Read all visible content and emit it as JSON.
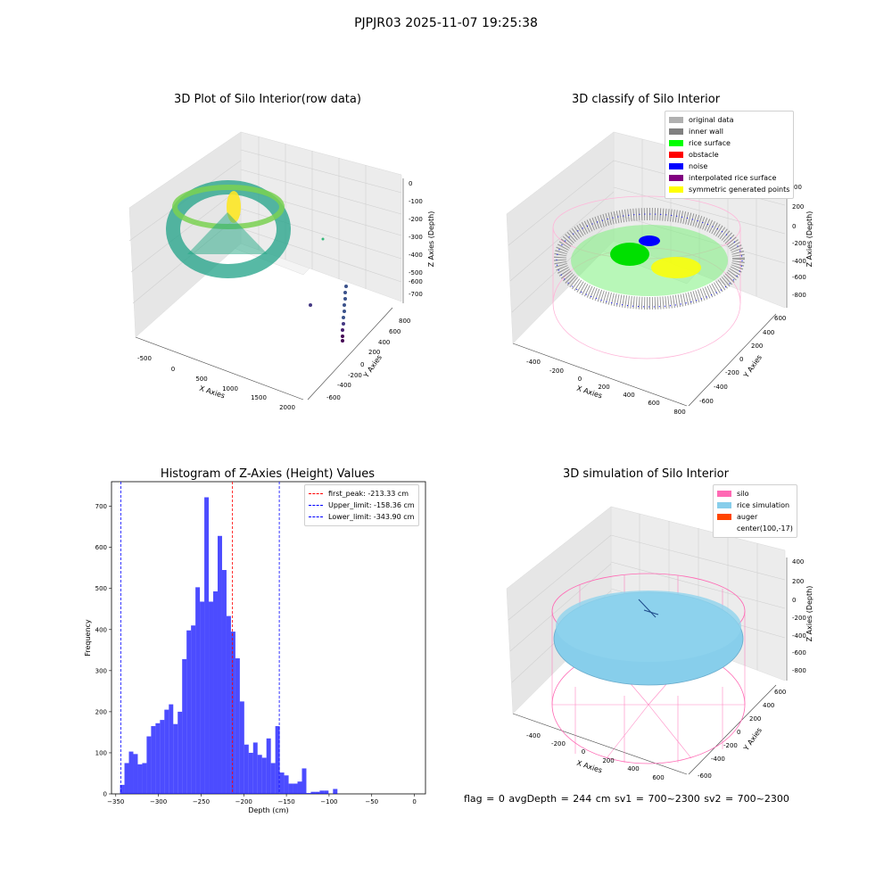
{
  "suptitle": "PJPJR03 2025-11-07 19:25:38",
  "footer": "flag = 0     avgDepth = 244 cm  sv1 = 700~2300  sv2 = 700~2300",
  "chart_data": [
    {
      "type": "scatter",
      "title": "3D Plot of Silo Interior(row data)",
      "xlabel": "X Axies",
      "ylabel": "Y Axies",
      "zlabel": "Z Axies (Depth)",
      "x_ticks": [
        "-500",
        "0",
        "500",
        "1000",
        "1500",
        "2000"
      ],
      "y_ticks": [
        "-600",
        "-400",
        "-200",
        "0",
        "200",
        "400",
        "600",
        "800"
      ],
      "z_ticks": [
        "0",
        "-100",
        "-200",
        "-300",
        "-400",
        "-500",
        "-600",
        "-700"
      ],
      "grid": true
    },
    {
      "type": "scatter",
      "title": "3D classify of Silo Interior",
      "xlabel": "X Axies",
      "ylabel": "Y Axies",
      "zlabel": "Z Axies (Depth)",
      "x_ticks": [
        "-400",
        "-200",
        "0",
        "200",
        "400",
        "600",
        "800"
      ],
      "y_ticks": [
        "-600",
        "-400",
        "-200",
        "0",
        "200",
        "400",
        "600"
      ],
      "z_ticks": [
        "200",
        "0",
        "-200",
        "-400",
        "-600",
        "-800"
      ],
      "z_ticks_partial": "00",
      "legend": [
        {
          "label": "original data",
          "color": "#b0b0b0"
        },
        {
          "label": "inner wall",
          "color": "#808080"
        },
        {
          "label": "rice surface",
          "color": "#00ff00"
        },
        {
          "label": "obstacle",
          "color": "#ff0000"
        },
        {
          "label": "noise",
          "color": "#0000ff"
        },
        {
          "label": "interpolated rice surface",
          "color": "#800080"
        },
        {
          "label": "symmetric generated points",
          "color": "#ffff00"
        }
      ],
      "legend_position": "top-right",
      "grid": true
    },
    {
      "type": "histogram",
      "title": "Histogram of Z-Axies (Height) Values",
      "xlabel": "Depth (cm)",
      "ylabel": "Frequency",
      "xlim": [
        -355,
        13
      ],
      "ylim": [
        0,
        760
      ],
      "x_ticks": [
        -350,
        -300,
        -250,
        -200,
        -150,
        -100,
        -50,
        0
      ],
      "y_ticks": [
        0,
        100,
        200,
        300,
        400,
        500,
        600,
        700
      ],
      "bin_start": -345,
      "bin_width": 5.2,
      "values": [
        22,
        75,
        103,
        97,
        72,
        75,
        140,
        165,
        172,
        180,
        205,
        218,
        170,
        200,
        328,
        398,
        410,
        503,
        468,
        722,
        468,
        493,
        628,
        545,
        433,
        395,
        330,
        225,
        120,
        100,
        125,
        95,
        88,
        135,
        75,
        165,
        52,
        45,
        25,
        25,
        30,
        62,
        2,
        5,
        5,
        8,
        8,
        0,
        12
      ],
      "bar_color": "#0000ff",
      "vlines": [
        {
          "label": "first_peak: -213.33 cm",
          "x": -213.33,
          "color": "#ff0000"
        },
        {
          "label": "Upper_limit: -158.36 cm",
          "x": -158.36,
          "color": "#0000ff"
        },
        {
          "label": "Lower_limit: -343.90 cm",
          "x": -343.9,
          "color": "#0000ff"
        }
      ],
      "legend_position": "top-right"
    },
    {
      "type": "surface",
      "title": "3D simulation of Silo Interior",
      "xlabel": "X Axies",
      "ylabel": "Y Axies",
      "zlabel": "Z Axies (Depth)",
      "x_ticks": [
        "-400",
        "-200",
        "0",
        "200",
        "400",
        "600"
      ],
      "y_ticks": [
        "-600",
        "-400",
        "-200",
        "0",
        "200",
        "400",
        "600"
      ],
      "z_ticks": [
        "400",
        "200",
        "0",
        "-200",
        "-400",
        "-600",
        "-800"
      ],
      "legend": [
        {
          "label": "silo",
          "color": "#ff69b4"
        },
        {
          "label": "rice simulation",
          "color": "#87ceeb"
        },
        {
          "label": "auger",
          "color": "#ff4500"
        },
        {
          "label": "center(100,-17)",
          "color": ""
        }
      ],
      "legend_position": "top-right",
      "grid": true
    }
  ]
}
